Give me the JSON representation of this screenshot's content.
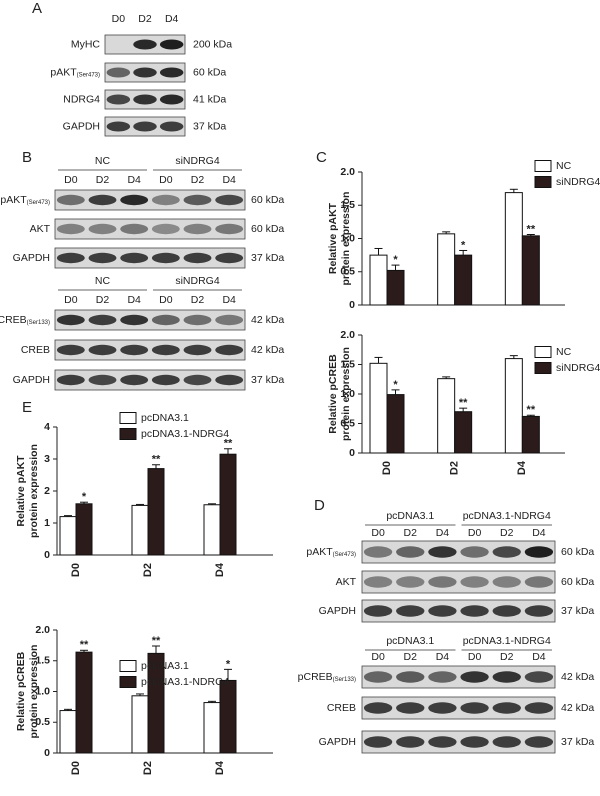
{
  "figure": {
    "A": {
      "letter": "A",
      "lanes": [
        "D0",
        "D2",
        "D4"
      ],
      "rows": [
        {
          "label": "MyHC",
          "size": "200 kDa"
        },
        {
          "label": "pAKT",
          "sub": "(Ser473)",
          "size": "60 kDa"
        },
        {
          "label": "NDRG4",
          "size": "41 kDa"
        },
        {
          "label": "GAPDH",
          "size": "37 kDa"
        }
      ]
    },
    "B": {
      "letter": "B",
      "blocks": [
        {
          "groups": [
            "NC",
            "siNDRG4"
          ],
          "lanes": [
            "D0",
            "D2",
            "D4",
            "D0",
            "D2",
            "D4"
          ],
          "rows": [
            {
              "label": "pAKT",
              "sub": "(Ser473)",
              "size": "60 kDa"
            },
            {
              "label": "AKT",
              "size": "60 kDa"
            },
            {
              "label": "GAPDH",
              "size": "37 kDa"
            }
          ]
        },
        {
          "groups": [
            "NC",
            "siNDRG4"
          ],
          "lanes": [
            "D0",
            "D2",
            "D4",
            "D0",
            "D2",
            "D4"
          ],
          "rows": [
            {
              "label": "pCREB",
              "sub": "(Ser133)",
              "size": "42 kDa"
            },
            {
              "label": "CREB",
              "size": "42 kDa"
            },
            {
              "label": "GAPDH",
              "size": "37 kDa"
            }
          ]
        }
      ]
    },
    "C": {
      "letter": "C"
    },
    "D": {
      "letter": "D",
      "blocks": [
        {
          "groups": [
            "pcDNA3.1",
            "pcDNA3.1-NDRG4"
          ],
          "lanes": [
            "D0",
            "D2",
            "D4",
            "D0",
            "D2",
            "D4"
          ],
          "rows": [
            {
              "label": "pAKT",
              "sub": "(Ser473)",
              "size": "60 kDa"
            },
            {
              "label": "AKT",
              "size": "60 kDa"
            },
            {
              "label": "GAPDH",
              "size": "37 kDa"
            }
          ]
        },
        {
          "groups": [
            "pcDNA3.1",
            "pcDNA3.1-NDRG4"
          ],
          "lanes": [
            "D0",
            "D2",
            "D4",
            "D0",
            "D2",
            "D4"
          ],
          "rows": [
            {
              "label": "pCREB",
              "sub": "(Ser133)",
              "size": "42 kDa"
            },
            {
              "label": "CREB",
              "size": "42 kDa"
            },
            {
              "label": "GAPDH",
              "size": "37 kDa"
            }
          ]
        }
      ]
    },
    "E": {
      "letter": "E"
    }
  },
  "chart_data": [
    {
      "type": "bar",
      "y_label": [
        "Relative pAKT",
        "protein expression"
      ],
      "ylim": [
        0,
        2
      ],
      "yticks": [
        0,
        0.5,
        {
          "value": 1,
          "label": "1.0"
        },
        1.5,
        {
          "value": 2,
          "label": "2.0"
        }
      ],
      "series": [
        {
          "name": "NC",
          "color": "#ffffff",
          "values": [
            0.75,
            1.07,
            1.69
          ],
          "errors": [
            0.1,
            0.03,
            0.05
          ]
        },
        {
          "name": "siNDRG4",
          "color": "#2b1b1b",
          "values": [
            0.52,
            0.75,
            1.04
          ],
          "errors": [
            0.08,
            0.07,
            0.02
          ],
          "significance": [
            "*",
            "*",
            "**"
          ]
        }
      ]
    },
    {
      "type": "bar",
      "y_label": [
        "Relative pCREB",
        "protein expression"
      ],
      "categories": [
        "D0",
        "D2",
        "D4"
      ],
      "ylim": [
        0,
        2
      ],
      "yticks": [
        0,
        0.5,
        {
          "value": 1,
          "label": "1.0"
        },
        1.5,
        {
          "value": 2,
          "label": "2.0"
        }
      ],
      "series": [
        {
          "name": "NC",
          "color": "#ffffff",
          "values": [
            1.52,
            1.26,
            1.6
          ],
          "errors": [
            0.1,
            0.03,
            0.05
          ]
        },
        {
          "name": "siNDRG4",
          "color": "#2b1b1b",
          "values": [
            0.99,
            0.7,
            0.62
          ],
          "errors": [
            0.08,
            0.06,
            0.02
          ],
          "significance": [
            "*",
            "**",
            "**"
          ]
        }
      ]
    },
    {
      "type": "bar",
      "y_label": [
        "Relative pAKT",
        "protein expression"
      ],
      "categories": [
        "D0",
        "D2",
        "D4"
      ],
      "ylim": [
        0,
        4
      ],
      "yticks": [
        0,
        1,
        2,
        3,
        4
      ],
      "series": [
        {
          "name": "pcDNA3.1",
          "color": "#ffffff",
          "values": [
            1.2,
            1.55,
            1.57
          ],
          "errors": [
            0.03,
            0.03,
            0.03
          ]
        },
        {
          "name": "pcDNA3.1-NDRG4",
          "color": "#2b1b1b",
          "values": [
            1.6,
            2.7,
            3.15
          ],
          "errors": [
            0.05,
            0.12,
            0.17
          ],
          "significance": [
            "*",
            "**",
            "**"
          ]
        }
      ]
    },
    {
      "type": "bar",
      "y_label": [
        "Relative pCREB",
        "protein expression"
      ],
      "categories": [
        "D0",
        "D2",
        "D4"
      ],
      "ylim": [
        0,
        2
      ],
      "yticks": [
        0,
        0.5,
        {
          "value": 1,
          "label": "1.0"
        },
        1.5,
        {
          "value": 2,
          "label": "2.0"
        }
      ],
      "series": [
        {
          "name": "pcDNA3.1",
          "color": "#ffffff",
          "values": [
            0.69,
            0.93,
            0.82
          ],
          "errors": [
            0.02,
            0.03,
            0.02
          ]
        },
        {
          "name": "pcDNA3.1-NDRG4",
          "color": "#2b1b1b",
          "values": [
            1.64,
            1.62,
            1.18
          ],
          "errors": [
            0.03,
            0.12,
            0.18
          ],
          "significance": [
            "**",
            "**",
            "*"
          ]
        }
      ]
    }
  ]
}
